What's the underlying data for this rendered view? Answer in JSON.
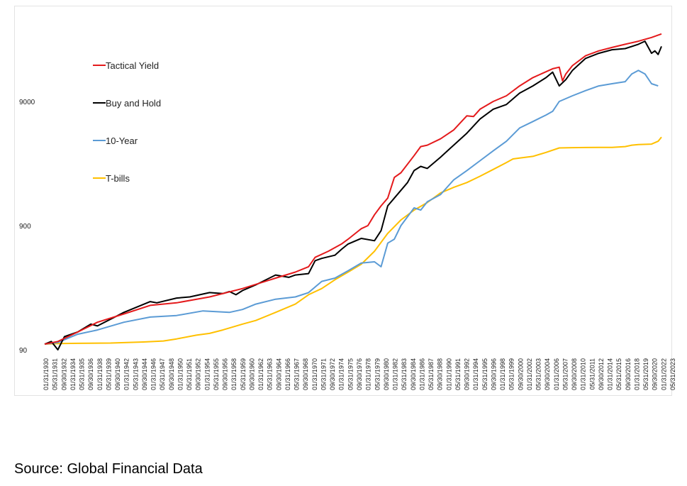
{
  "source": "Source: Global Financial Data",
  "chart_data": {
    "type": "line",
    "title": "",
    "xlabel": "",
    "ylabel": "",
    "y_scale": "log",
    "ylim": [
      90,
      30000
    ],
    "y_ticks": [
      90,
      900,
      9000
    ],
    "grid": false,
    "legend_placement": "top-left",
    "x_tick_labels": [
      "01/31/1930",
      "05/31/1931",
      "09/30/1932",
      "01/31/1934",
      "05/31/1935",
      "09/30/1936",
      "01/31/1938",
      "05/31/1939",
      "09/30/1940",
      "01/31/1942",
      "05/31/1943",
      "09/30/1944",
      "01/31/1946",
      "05/31/1947",
      "09/30/1948",
      "01/31/1950",
      "05/31/1951",
      "09/30/1952",
      "01/31/1954",
      "05/31/1955",
      "09/30/1956",
      "01/31/1958",
      "05/31/1959",
      "09/30/1960",
      "01/31/1962",
      "05/31/1963",
      "09/30/1964",
      "01/31/1966",
      "05/31/1967",
      "09/30/1968",
      "01/31/1970",
      "05/31/1971",
      "09/30/1972",
      "01/31/1974",
      "05/31/1975",
      "09/30/1976",
      "01/31/1978",
      "05/31/1979",
      "09/30/1980",
      "01/31/1982",
      "05/31/1983",
      "09/30/1984",
      "01/31/1986",
      "05/31/1987",
      "09/30/1988",
      "01/31/1990",
      "05/31/1991",
      "09/30/1992",
      "01/31/1994",
      "05/31/1995",
      "09/30/1996",
      "01/31/1998",
      "05/31/1999",
      "09/30/2000",
      "01/31/2002",
      "05/31/2003",
      "09/30/2004",
      "01/31/2006",
      "05/31/2007",
      "09/30/2008",
      "01/31/2010",
      "05/31/2011",
      "09/30/2012",
      "01/31/2014",
      "05/31/2015",
      "09/30/2016",
      "01/31/2018",
      "05/31/2019",
      "09/30/2020",
      "01/31/2022",
      "05/31/2023"
    ],
    "series": [
      {
        "name": "Tactical Yield",
        "color": "#e41a1c",
        "points": [
          [
            1930,
            100
          ],
          [
            1932,
            105
          ],
          [
            1935,
            125
          ],
          [
            1938,
            150
          ],
          [
            1942,
            175
          ],
          [
            1946,
            205
          ],
          [
            1950,
            215
          ],
          [
            1955,
            240
          ],
          [
            1960,
            280
          ],
          [
            1965,
            340
          ],
          [
            1968,
            380
          ],
          [
            1970,
            420
          ],
          [
            1971,
            500
          ],
          [
            1973,
            560
          ],
          [
            1975,
            640
          ],
          [
            1976,
            700
          ],
          [
            1978,
            850
          ],
          [
            1979,
            900
          ],
          [
            1980,
            1100
          ],
          [
            1981,
            1300
          ],
          [
            1982,
            1500
          ],
          [
            1983,
            2200
          ],
          [
            1984,
            2400
          ],
          [
            1986,
            3300
          ],
          [
            1987,
            3900
          ],
          [
            1988,
            4000
          ],
          [
            1990,
            4500
          ],
          [
            1992,
            5300
          ],
          [
            1994,
            6900
          ],
          [
            1995,
            6800
          ],
          [
            1996,
            7800
          ],
          [
            1998,
            9000
          ],
          [
            2000,
            10000
          ],
          [
            2002,
            12000
          ],
          [
            2004,
            14000
          ],
          [
            2007,
            16500
          ],
          [
            2008,
            17000
          ],
          [
            2008.5,
            13200
          ],
          [
            2009,
            15000
          ],
          [
            2010,
            17500
          ],
          [
            2012,
            21000
          ],
          [
            2014,
            23000
          ],
          [
            2016,
            24500
          ],
          [
            2018,
            26000
          ],
          [
            2020,
            27500
          ],
          [
            2022,
            29500
          ],
          [
            2023.5,
            31500
          ]
        ]
      },
      {
        "name": "Buy and Hold",
        "color": "#000000",
        "points": [
          [
            1930,
            100
          ],
          [
            1931,
            105
          ],
          [
            1932,
            90
          ],
          [
            1933,
            115
          ],
          [
            1935,
            125
          ],
          [
            1937,
            145
          ],
          [
            1938,
            140
          ],
          [
            1942,
            180
          ],
          [
            1946,
            220
          ],
          [
            1947,
            215
          ],
          [
            1950,
            235
          ],
          [
            1952,
            240
          ],
          [
            1955,
            260
          ],
          [
            1957,
            255
          ],
          [
            1958,
            265
          ],
          [
            1959,
            250
          ],
          [
            1960,
            270
          ],
          [
            1962,
            300
          ],
          [
            1965,
            360
          ],
          [
            1967,
            345
          ],
          [
            1968,
            360
          ],
          [
            1970,
            370
          ],
          [
            1971,
            470
          ],
          [
            1972,
            490
          ],
          [
            1974,
            520
          ],
          [
            1975,
            580
          ],
          [
            1976,
            640
          ],
          [
            1978,
            710
          ],
          [
            1980,
            680
          ],
          [
            1981,
            820
          ],
          [
            1982,
            1300
          ],
          [
            1983,
            1500
          ],
          [
            1985,
            2000
          ],
          [
            1986,
            2500
          ],
          [
            1987,
            2700
          ],
          [
            1988,
            2600
          ],
          [
            1990,
            3200
          ],
          [
            1992,
            4000
          ],
          [
            1994,
            5000
          ],
          [
            1996,
            6500
          ],
          [
            1998,
            7800
          ],
          [
            2000,
            8500
          ],
          [
            2002,
            10500
          ],
          [
            2004,
            12000
          ],
          [
            2006,
            14000
          ],
          [
            2007,
            15500
          ],
          [
            2008,
            12000
          ],
          [
            2009,
            13500
          ],
          [
            2010,
            16000
          ],
          [
            2012,
            20000
          ],
          [
            2014,
            22000
          ],
          [
            2016,
            23500
          ],
          [
            2018,
            24000
          ],
          [
            2020,
            26000
          ],
          [
            2021,
            27500
          ],
          [
            2022,
            22000
          ],
          [
            2022.5,
            23000
          ],
          [
            2023,
            21500
          ],
          [
            2023.5,
            25000
          ]
        ]
      },
      {
        "name": "10-Year",
        "color": "#5b9bd5",
        "points": [
          [
            1930,
            100
          ],
          [
            1932,
            103
          ],
          [
            1935,
            120
          ],
          [
            1938,
            130
          ],
          [
            1942,
            150
          ],
          [
            1946,
            165
          ],
          [
            1950,
            170
          ],
          [
            1954,
            185
          ],
          [
            1958,
            180
          ],
          [
            1960,
            190
          ],
          [
            1962,
            210
          ],
          [
            1965,
            230
          ],
          [
            1968,
            240
          ],
          [
            1970,
            260
          ],
          [
            1972,
            320
          ],
          [
            1974,
            340
          ],
          [
            1976,
            390
          ],
          [
            1978,
            450
          ],
          [
            1980,
            460
          ],
          [
            1981,
            420
          ],
          [
            1982,
            650
          ],
          [
            1983,
            700
          ],
          [
            1984,
            900
          ],
          [
            1986,
            1250
          ],
          [
            1987,
            1200
          ],
          [
            1988,
            1400
          ],
          [
            1990,
            1600
          ],
          [
            1992,
            2100
          ],
          [
            1994,
            2500
          ],
          [
            1996,
            3000
          ],
          [
            1998,
            3600
          ],
          [
            2000,
            4300
          ],
          [
            2002,
            5500
          ],
          [
            2004,
            6200
          ],
          [
            2006,
            7000
          ],
          [
            2007,
            7500
          ],
          [
            2008,
            9000
          ],
          [
            2010,
            10000
          ],
          [
            2012,
            11000
          ],
          [
            2014,
            12000
          ],
          [
            2016,
            12500
          ],
          [
            2018,
            13000
          ],
          [
            2019,
            15000
          ],
          [
            2020,
            16000
          ],
          [
            2021,
            15000
          ],
          [
            2022,
            12500
          ],
          [
            2023,
            12000
          ]
        ]
      },
      {
        "name": "T-bills",
        "color": "#ffc000",
        "points": [
          [
            1930,
            100
          ],
          [
            1932,
            101
          ],
          [
            1935,
            101.5
          ],
          [
            1940,
            102
          ],
          [
            1945,
            104
          ],
          [
            1948,
            106
          ],
          [
            1950,
            110
          ],
          [
            1953,
            118
          ],
          [
            1955,
            122
          ],
          [
            1957,
            130
          ],
          [
            1960,
            145
          ],
          [
            1962,
            155
          ],
          [
            1965,
            180
          ],
          [
            1968,
            210
          ],
          [
            1970,
            250
          ],
          [
            1972,
            280
          ],
          [
            1974,
            330
          ],
          [
            1976,
            380
          ],
          [
            1978,
            440
          ],
          [
            1980,
            560
          ],
          [
            1982,
            780
          ],
          [
            1984,
            1000
          ],
          [
            1986,
            1200
          ],
          [
            1988,
            1380
          ],
          [
            1990,
            1650
          ],
          [
            1992,
            1830
          ],
          [
            1994,
            2000
          ],
          [
            1996,
            2250
          ],
          [
            1998,
            2550
          ],
          [
            2000,
            2900
          ],
          [
            2001,
            3100
          ],
          [
            2002,
            3150
          ],
          [
            2004,
            3250
          ],
          [
            2006,
            3500
          ],
          [
            2008,
            3800
          ],
          [
            2010,
            3820
          ],
          [
            2012,
            3830
          ],
          [
            2014,
            3835
          ],
          [
            2016,
            3840
          ],
          [
            2018,
            3900
          ],
          [
            2019,
            4000
          ],
          [
            2020,
            4050
          ],
          [
            2022,
            4080
          ],
          [
            2023,
            4300
          ],
          [
            2023.5,
            4650
          ]
        ]
      }
    ]
  }
}
